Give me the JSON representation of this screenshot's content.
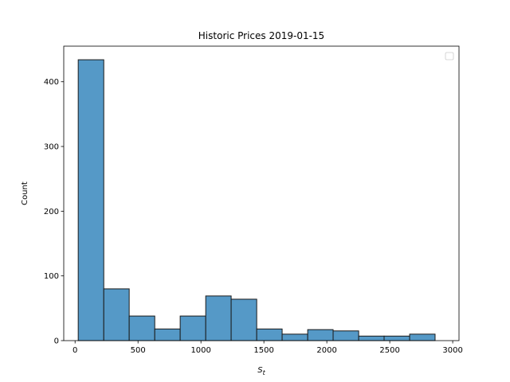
{
  "chart_data": {
    "type": "bar",
    "title": "Historic Prices 2019-01-15",
    "xlabel_main": "S",
    "xlabel_sub": "t",
    "ylabel": "Count",
    "xlim": [
      -90,
      3050
    ],
    "ylim": [
      0,
      455
    ],
    "xticks": [
      0,
      500,
      1000,
      1500,
      2000,
      2500,
      3000
    ],
    "yticks": [
      0,
      100,
      200,
      300,
      400
    ],
    "bin_edges": [
      25,
      228,
      430,
      633,
      835,
      1038,
      1240,
      1443,
      1645,
      1848,
      2050,
      2253,
      2455,
      2658,
      2860
    ],
    "values": [
      434,
      80,
      38,
      18,
      38,
      69,
      64,
      18,
      10,
      17,
      15,
      7,
      7,
      10
    ],
    "bar_color": "#5599c7",
    "edge_color": "#1a1a1a",
    "grid": false,
    "legend": "top-right (empty)"
  }
}
